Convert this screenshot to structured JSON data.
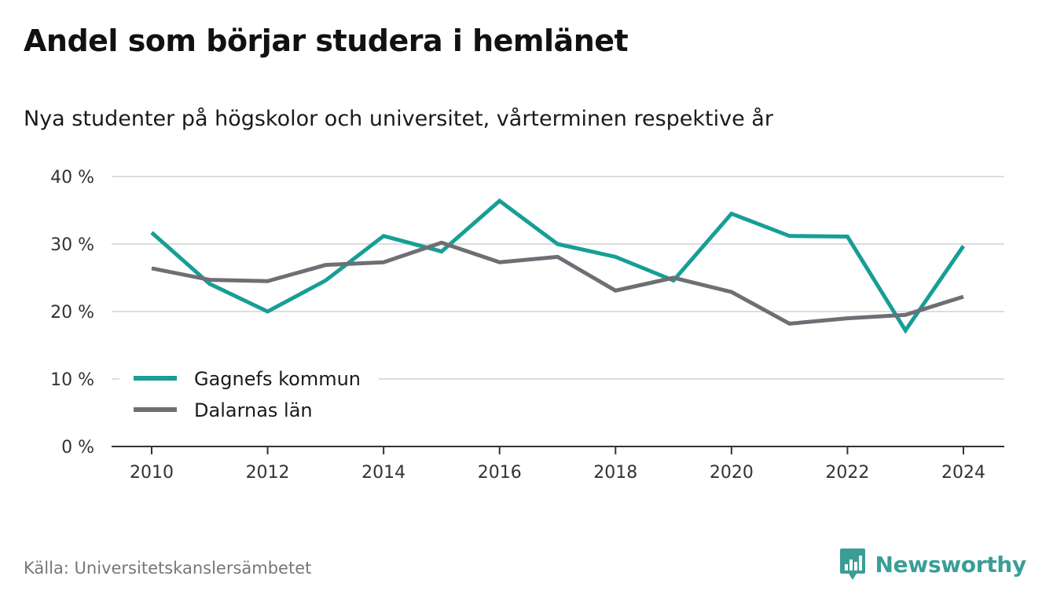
{
  "header": {
    "title": "Andel som börjar studera i hemlänet",
    "subtitle": "Nya studenter på högskolor och universitet, vårterminen respektive år"
  },
  "footer": {
    "source": "Källa: Universitetskanslersämbetet",
    "brand": "Newsworthy",
    "brand_icon": "bar-chart-icon",
    "brand_color": "#3a9e97"
  },
  "chart_data": {
    "type": "line",
    "title": "Andel som börjar studera i hemlänet",
    "subtitle": "Nya studenter på högskolor och universitet, vårterminen respektive år",
    "xlabel": "",
    "ylabel": "",
    "x": [
      2010,
      2011,
      2012,
      2013,
      2014,
      2015,
      2016,
      2017,
      2018,
      2019,
      2020,
      2021,
      2022,
      2023,
      2024
    ],
    "x_ticks": [
      "2010",
      "2012",
      "2014",
      "2016",
      "2018",
      "2020",
      "2022",
      "2024"
    ],
    "y_ticks": [
      "0 %",
      "10 %",
      "20 %",
      "30 %",
      "40 %"
    ],
    "ylim": [
      0,
      40
    ],
    "grid": "horizontal",
    "legend_position": "bottom-left",
    "series": [
      {
        "name": "Gagnefs kommun",
        "color": "#179e95",
        "values": [
          31.7,
          24.1,
          20.0,
          24.6,
          31.2,
          28.9,
          36.4,
          30.0,
          28.1,
          24.6,
          34.5,
          31.2,
          31.1,
          17.2,
          29.7
        ]
      },
      {
        "name": "Dalarnas län",
        "color": "#6f6e75",
        "values": [
          26.4,
          24.7,
          24.5,
          26.9,
          27.3,
          30.2,
          27.3,
          28.1,
          23.1,
          25.0,
          22.9,
          18.2,
          19.0,
          19.5,
          22.2
        ]
      }
    ]
  }
}
